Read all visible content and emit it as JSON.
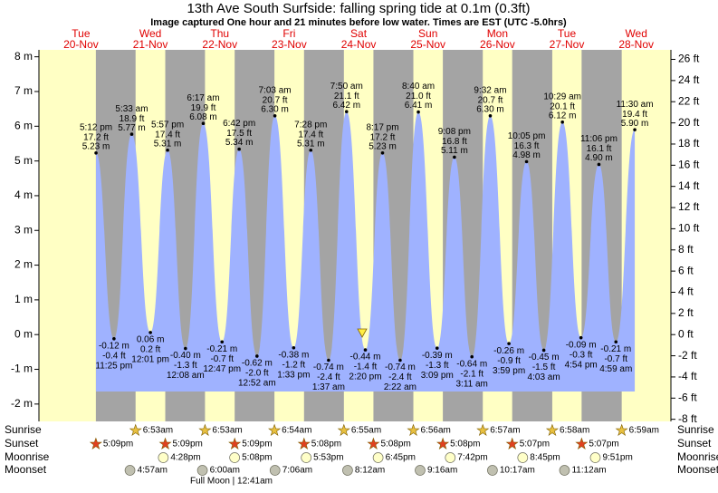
{
  "chart_data": {
    "type": "tide",
    "title": "13th Ave South Surfside: falling  spring tide at 0.1m (0.3ft)",
    "subtitle": "Image captured One hour and 21 minutes before low water. Times are EST (UTC -5.0hrs)",
    "days": [
      "Tue",
      "Wed",
      "Thu",
      "Fri",
      "Sat",
      "Sun",
      "Mon",
      "Tue",
      "Wed"
    ],
    "dates": [
      "20-Nov",
      "21-Nov",
      "22-Nov",
      "23-Nov",
      "24-Nov",
      "25-Nov",
      "26-Nov",
      "27-Nov",
      "28-Nov"
    ],
    "ylim": [
      -2.5,
      8.2
    ],
    "yticks": [
      {
        "value": -2,
        "label": "-2 m"
      },
      {
        "value": -1,
        "label": "-1 m"
      },
      {
        "value": 0,
        "label": "0 m"
      },
      {
        "value": 1,
        "label": "1 m"
      },
      {
        "value": 2,
        "label": "2 m"
      },
      {
        "value": 3,
        "label": "3 m"
      },
      {
        "value": 4,
        "label": "4 m"
      },
      {
        "value": 5,
        "label": "5 m"
      },
      {
        "value": 6,
        "label": "6 m"
      },
      {
        "value": 7,
        "label": "7 m"
      },
      {
        "value": 8,
        "label": "8 m"
      }
    ],
    "y2lim": [
      -8.2,
      26.9
    ],
    "y2ticks": [
      {
        "value": -8,
        "label": "-8 ft"
      },
      {
        "value": -6,
        "label": "-6 ft"
      },
      {
        "value": -4,
        "label": "-4 ft"
      },
      {
        "value": -2,
        "label": "-2 ft"
      },
      {
        "value": 0,
        "label": "0 ft"
      },
      {
        "value": 2,
        "label": "2 ft"
      },
      {
        "value": 4,
        "label": "4 ft"
      },
      {
        "value": 6,
        "label": "6 ft"
      },
      {
        "value": 8,
        "label": "8 ft"
      },
      {
        "value": 10,
        "label": "10 ft"
      },
      {
        "value": 12,
        "label": "12 ft"
      },
      {
        "value": 14,
        "label": "14 ft"
      },
      {
        "value": 16,
        "label": "16 ft"
      },
      {
        "value": 18,
        "label": "18 ft"
      },
      {
        "value": 20,
        "label": "20 ft"
      },
      {
        "value": 22,
        "label": "22 ft"
      },
      {
        "value": 24,
        "label": "24 ft"
      },
      {
        "value": 26,
        "label": "26 ft"
      }
    ],
    "color": "#9fb2ff",
    "tides": {
      "times": [
        "5:12 pm",
        "11:25 pm",
        "5:33 am",
        "12:01 pm",
        "5:57 pm",
        "12:08 am",
        "6:17 am",
        "12:47 pm",
        "6:42 pm",
        "12:52 am",
        "7:03 am",
        "1:33 pm",
        "7:28 pm",
        "1:37 am",
        "7:50 am",
        "2:20 pm",
        "8:17 pm",
        "2:22 am",
        "8:40 am",
        "3:09 pm",
        "9:08 pm",
        "3:11 am",
        "9:32 am",
        "3:59 pm",
        "10:05 pm",
        "4:03 am",
        "10:29 am",
        "4:54 pm",
        "11:06 pm",
        "4:59 am",
        "11:30 am"
      ],
      "values": [
        5.23,
        -0.12,
        5.77,
        0.06,
        5.31,
        -0.4,
        6.08,
        -0.21,
        5.34,
        -0.62,
        6.3,
        -0.38,
        5.31,
        -0.74,
        6.42,
        -0.44,
        5.23,
        -0.74,
        6.41,
        -0.39,
        5.11,
        -0.64,
        6.3,
        -0.26,
        4.98,
        -0.45,
        6.12,
        -0.09,
        4.9,
        -0.21,
        5.9
      ],
      "value_labels": [
        "5.23 m",
        "-0.12 m",
        "5.77 m",
        "0.06 m",
        "5.31 m",
        "-0.40 m",
        "6.08 m",
        "-0.21 m",
        "5.34 m",
        "-0.62 m",
        "6.30 m",
        "-0.38 m",
        "5.31 m",
        "-0.74 m",
        "6.42 m",
        "-0.44 m",
        "5.23 m",
        "-0.74 m",
        "6.41 m",
        "-0.39 m",
        "5.11 m",
        "-0.64 m",
        "6.30 m",
        "-0.26 m",
        "4.98 m",
        "-0.45 m",
        "6.12 m",
        "-0.09 m",
        "4.90 m",
        "-0.21 m",
        "5.90 m"
      ],
      "values_ft": [
        17.2,
        -0.4,
        18.9,
        0.2,
        17.4,
        -1.3,
        19.9,
        -0.7,
        17.5,
        -2.0,
        20.7,
        -1.2,
        17.4,
        -2.4,
        21.1,
        -1.4,
        17.2,
        -2.4,
        21.0,
        -1.3,
        16.8,
        -2.1,
        20.7,
        -0.9,
        16.3,
        -1.5,
        20.1,
        -0.3,
        16.1,
        -0.7,
        19.4
      ],
      "value_labels_ft": [
        "17.2 ft",
        "-0.4 ft",
        "18.9 ft",
        "0.2 ft",
        "17.4 ft",
        "-1.3 ft",
        "19.9 ft",
        "-0.7 ft",
        "17.5 ft",
        "-2.0 ft",
        "20.7 ft",
        "-1.2 ft",
        "17.4 ft",
        "-2.4 ft",
        "21.1 ft",
        "-1.4 ft",
        "17.2 ft",
        "-2.4 ft",
        "21.0 ft",
        "-1.3 ft",
        "16.8 ft",
        "-2.1 ft",
        "20.7 ft",
        "-0.9 ft",
        "16.3 ft",
        "-1.5 ft",
        "20.1 ft",
        "-0.3 ft",
        "16.1 ft",
        "-0.7 ft",
        "19.4 ft"
      ]
    },
    "row_labels": [
      "Sunrise",
      "Sunset",
      "Moonrise",
      "Moonset"
    ],
    "sunrise": [
      null,
      "6:53am",
      "6:53am",
      "6:54am",
      "6:55am",
      "6:56am",
      "6:57am",
      "6:58am",
      "6:59am"
    ],
    "sunset": [
      "5:09pm",
      "5:09pm",
      "5:09pm",
      "5:08pm",
      "5:08pm",
      "5:08pm",
      "5:07pm",
      "5:07pm",
      null
    ],
    "moonrise": [
      null,
      "4:28pm",
      "5:08pm",
      "5:53pm",
      "6:45pm",
      "7:42pm",
      "8:45pm",
      "9:51pm",
      null
    ],
    "moonset": [
      null,
      "4:57am",
      "6:00am",
      "7:06am",
      "8:12am",
      "9:16am",
      "10:17am",
      "11:12am",
      null
    ],
    "moon_phase": "Full Moon | 12:41am"
  }
}
